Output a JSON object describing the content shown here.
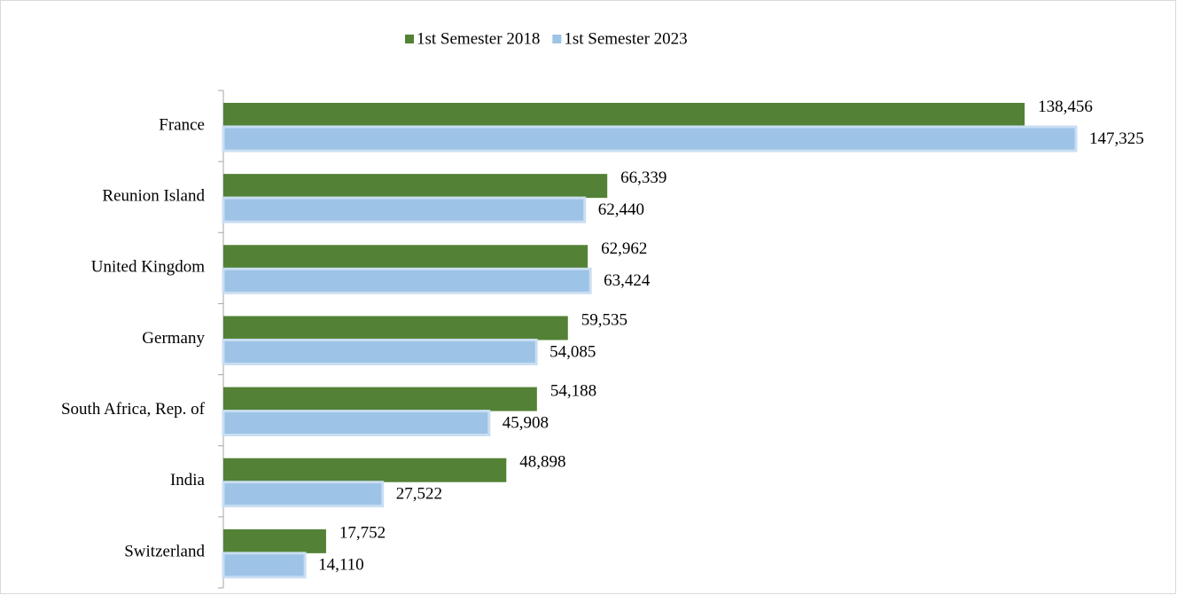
{
  "chart_data": {
    "type": "bar",
    "orientation": "horizontal",
    "categories": [
      "France",
      "Reunion Island",
      "United Kingdom",
      "Germany",
      "South Africa, Rep. of",
      "India",
      "Switzerland"
    ],
    "series": [
      {
        "name": "1st Semester 2018",
        "color": "#538135",
        "values": [
          138456,
          66339,
          62962,
          59535,
          54188,
          48898,
          17752
        ],
        "value_labels": [
          "138,456",
          "66,339",
          "62,962",
          "59,535",
          "54,188",
          "48,898",
          "17,752"
        ]
      },
      {
        "name": "1st Semester 2023",
        "color": "#9dc3e6",
        "values": [
          147325,
          62440,
          63424,
          54085,
          45908,
          27522,
          14110
        ],
        "value_labels": [
          "147,325",
          "62,440",
          "63,424",
          "54,085",
          "45,908",
          "27,522",
          "14,110"
        ]
      }
    ],
    "legend": "top"
  }
}
